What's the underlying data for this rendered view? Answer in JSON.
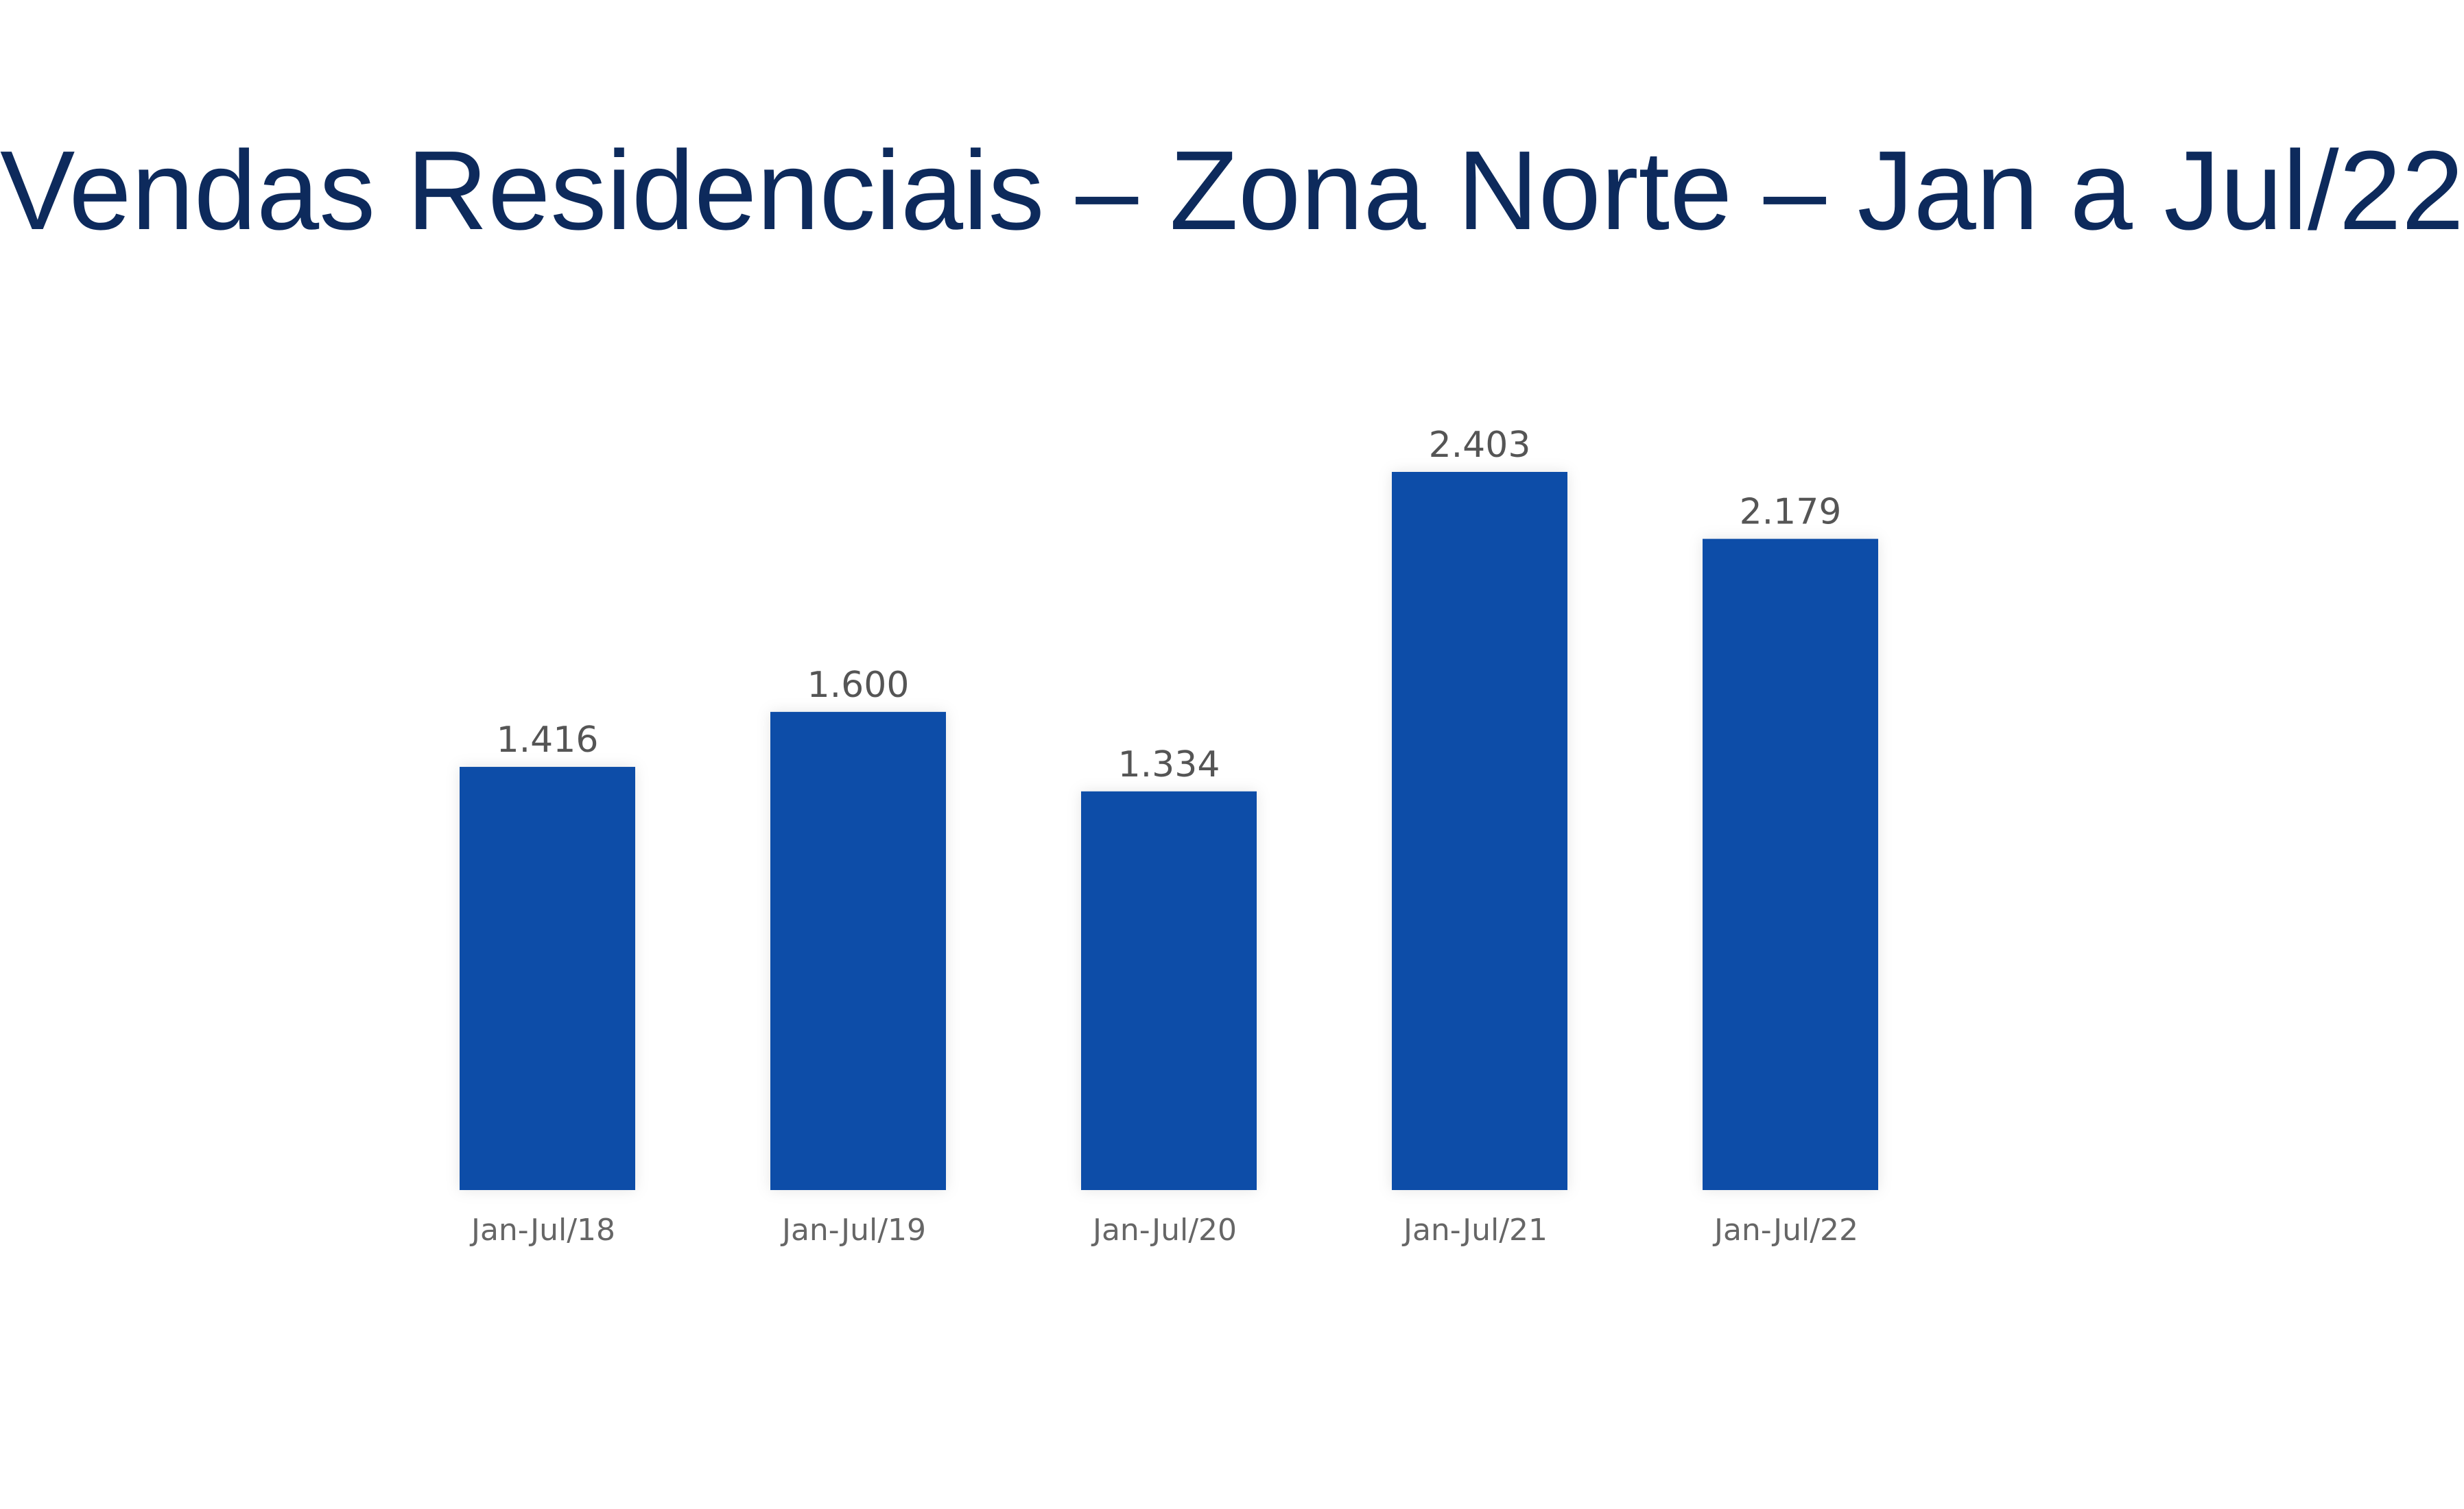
{
  "chart_data": {
    "type": "bar",
    "title": "Vendas Residenciais – Zona Norte – Jan a Jul/22",
    "xlabel": "",
    "ylabel": "",
    "categories": [
      "Jan-Jul/18",
      "Jan-Jul/19",
      "Jan-Jul/20",
      "Jan-Jul/21",
      "Jan-Jul/22"
    ],
    "values": [
      1416,
      1600,
      1334,
      2403,
      2179
    ],
    "value_labels": [
      "1.416",
      "1.600",
      "1.334",
      "2.403",
      "2.179"
    ],
    "ylim": [
      0,
      2403
    ],
    "grid": false,
    "legend": "none",
    "bar_color": "#0d4da8",
    "title_color": "#0d2a5c"
  }
}
